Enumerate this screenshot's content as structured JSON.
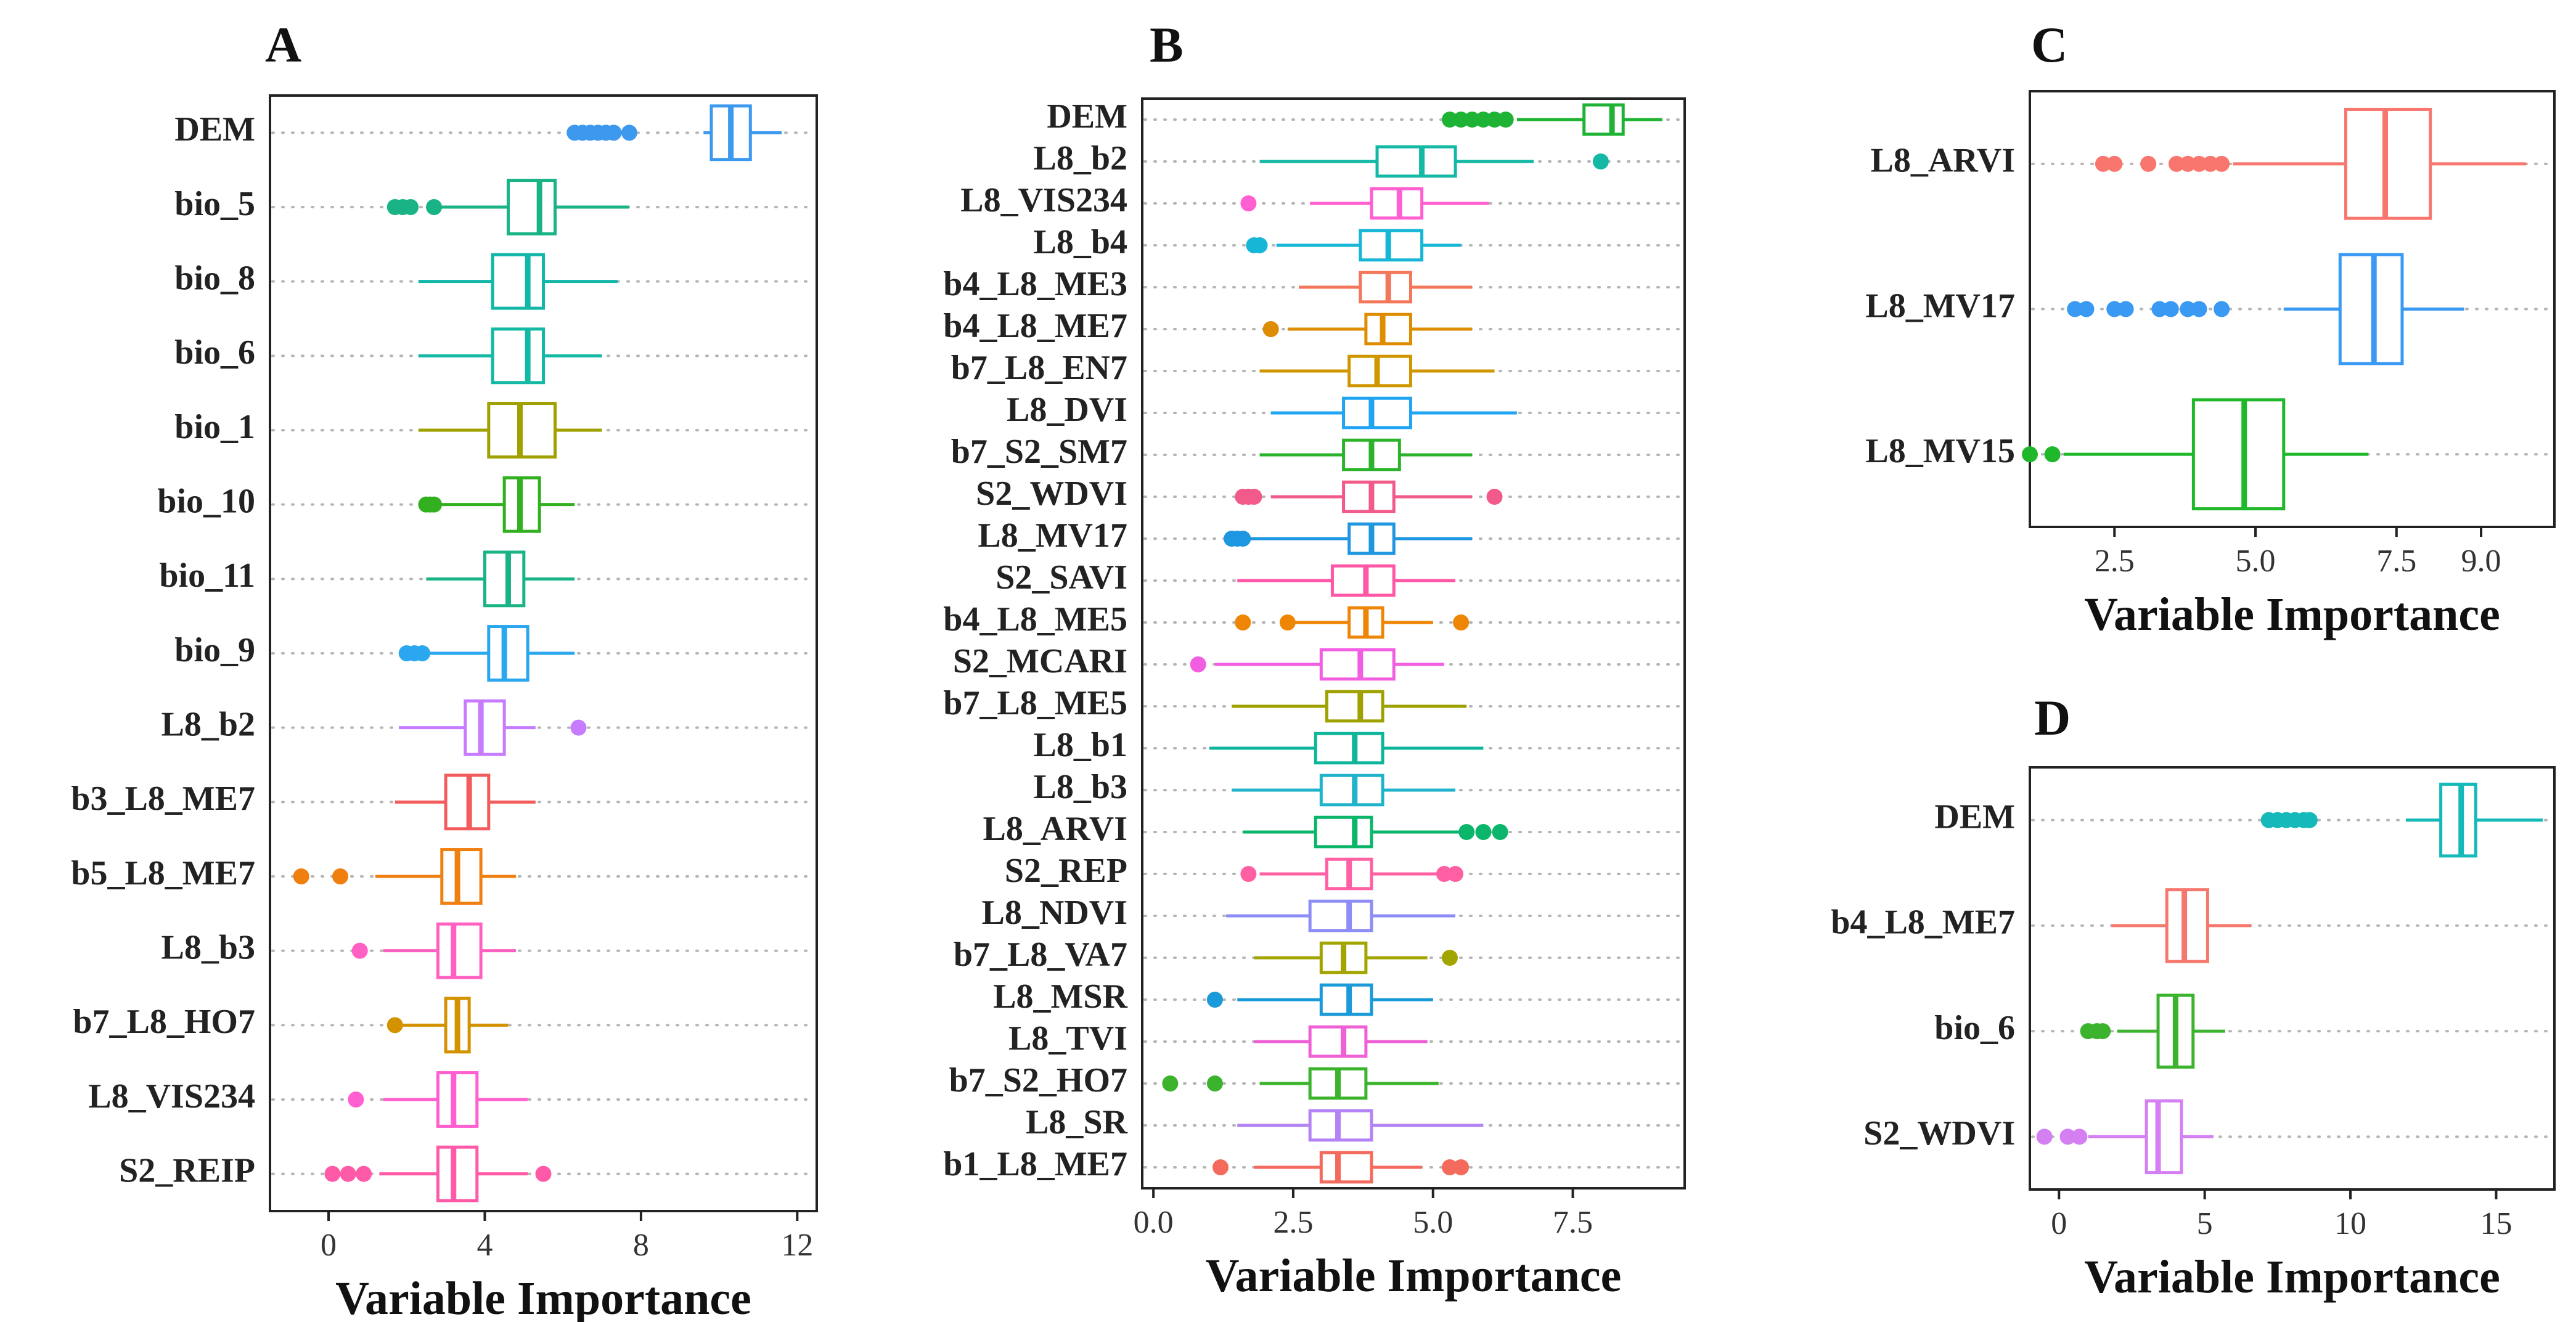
{
  "chart_data": [
    {
      "panel": "A",
      "type": "boxplot",
      "orientation": "horizontal",
      "xlabel": "Variable Importance",
      "xlim": [
        -1.5,
        12.5
      ],
      "xticks": [
        0,
        4,
        8,
        12
      ],
      "tick_labels": [
        "0",
        "4",
        "8",
        "12"
      ],
      "series": [
        {
          "name": "DEM",
          "color": "#3d99ee",
          "min": 9.6,
          "q1": 9.8,
          "median": 10.3,
          "q3": 10.8,
          "max": 11.6,
          "outliers": [
            6.3,
            6.5,
            6.7,
            6.9,
            7.1,
            7.3,
            7.7
          ]
        },
        {
          "name": "bio_5",
          "color": "#19b386",
          "min": 2.9,
          "q1": 4.6,
          "median": 5.4,
          "q3": 5.8,
          "max": 7.7,
          "outliers": [
            1.7,
            1.9,
            2.1,
            2.7
          ]
        },
        {
          "name": "bio_8",
          "color": "#12b7a8",
          "min": 2.3,
          "q1": 4.2,
          "median": 5.1,
          "q3": 5.5,
          "max": 7.4,
          "outliers": []
        },
        {
          "name": "bio_6",
          "color": "#13b9a4",
          "min": 2.3,
          "q1": 4.2,
          "median": 5.1,
          "q3": 5.5,
          "max": 7.0,
          "outliers": []
        },
        {
          "name": "bio_1",
          "color": "#a0a000",
          "min": 2.3,
          "q1": 4.1,
          "median": 4.9,
          "q3": 5.8,
          "max": 7.0,
          "outliers": []
        },
        {
          "name": "bio_10",
          "color": "#32b020",
          "min": 2.9,
          "q1": 4.5,
          "median": 4.9,
          "q3": 5.4,
          "max": 6.3,
          "outliers": [
            2.5,
            2.6,
            2.7
          ]
        },
        {
          "name": "bio_11",
          "color": "#19b386",
          "min": 2.5,
          "q1": 4.0,
          "median": 4.6,
          "q3": 5.0,
          "max": 6.3,
          "outliers": []
        },
        {
          "name": "bio_9",
          "color": "#2aa7ee",
          "min": 2.5,
          "q1": 4.1,
          "median": 4.5,
          "q3": 5.1,
          "max": 6.3,
          "outliers": [
            2.0,
            2.2,
            2.4
          ]
        },
        {
          "name": "L8_b2",
          "color": "#c77cff",
          "min": 1.8,
          "q1": 3.5,
          "median": 3.9,
          "q3": 4.5,
          "max": 5.3,
          "outliers": [
            6.4
          ]
        },
        {
          "name": "b3_L8_ME7",
          "color": "#f25c5c",
          "min": 1.7,
          "q1": 3.0,
          "median": 3.6,
          "q3": 4.1,
          "max": 5.3,
          "outliers": []
        },
        {
          "name": "b5_L8_ME7",
          "color": "#ef7f0f",
          "min": 1.2,
          "q1": 2.9,
          "median": 3.3,
          "q3": 3.9,
          "max": 4.8,
          "outliers": [
            -0.7,
            0.3
          ]
        },
        {
          "name": "L8_b3",
          "color": "#ff61c3",
          "min": 1.4,
          "q1": 2.8,
          "median": 3.2,
          "q3": 3.9,
          "max": 4.8,
          "outliers": [
            0.8
          ]
        },
        {
          "name": "b7_L8_HO7",
          "color": "#d39200",
          "min": 1.8,
          "q1": 3.0,
          "median": 3.3,
          "q3": 3.6,
          "max": 4.6,
          "outliers": [
            1.7
          ]
        },
        {
          "name": "L8_VIS234",
          "color": "#ff5fd0",
          "min": 1.4,
          "q1": 2.8,
          "median": 3.2,
          "q3": 3.8,
          "max": 5.1,
          "outliers": [
            0.7
          ]
        },
        {
          "name": "S2_REIP",
          "color": "#ff5aa7",
          "min": 1.3,
          "q1": 2.8,
          "median": 3.2,
          "q3": 3.8,
          "max": 5.1,
          "outliers": [
            0.1,
            0.5,
            0.9,
            5.5
          ]
        }
      ]
    },
    {
      "panel": "B",
      "type": "boxplot",
      "orientation": "horizontal",
      "xlabel": "Variable Importance",
      "xlim": [
        -0.2,
        9.5
      ],
      "xticks": [
        0,
        2.5,
        5,
        7.5
      ],
      "tick_labels": [
        "0.0",
        "2.5",
        "5.0",
        "7.5"
      ],
      "series": [
        {
          "name": "DEM",
          "color": "#1fb335",
          "min": 6.5,
          "q1": 7.7,
          "median": 8.2,
          "q3": 8.4,
          "max": 9.1,
          "outliers": [
            5.3,
            5.5,
            5.7,
            5.9,
            6.1,
            6.3
          ]
        },
        {
          "name": "L8_b2",
          "color": "#13b9a4",
          "min": 1.9,
          "q1": 4.0,
          "median": 4.8,
          "q3": 5.4,
          "max": 6.8,
          "outliers": [
            8.0
          ]
        },
        {
          "name": "L8_VIS234",
          "color": "#ff5fd0",
          "min": 2.8,
          "q1": 3.9,
          "median": 4.4,
          "q3": 4.8,
          "max": 6.0,
          "outliers": [
            1.7
          ]
        },
        {
          "name": "L8_b4",
          "color": "#16b6d6",
          "min": 2.2,
          "q1": 3.7,
          "median": 4.2,
          "q3": 4.8,
          "max": 5.5,
          "outliers": [
            1.8,
            1.9
          ]
        },
        {
          "name": "b4_L8_ME3",
          "color": "#f2775b",
          "min": 2.6,
          "q1": 3.7,
          "median": 4.2,
          "q3": 4.6,
          "max": 5.7,
          "outliers": []
        },
        {
          "name": "b4_L8_ME7",
          "color": "#de8c00",
          "min": 2.4,
          "q1": 3.8,
          "median": 4.1,
          "q3": 4.6,
          "max": 5.7,
          "outliers": [
            2.1
          ]
        },
        {
          "name": "b7_L8_EN7",
          "color": "#cf9600",
          "min": 1.9,
          "q1": 3.5,
          "median": 4.0,
          "q3": 4.6,
          "max": 6.1,
          "outliers": []
        },
        {
          "name": "L8_DVI",
          "color": "#21a4f3",
          "min": 2.1,
          "q1": 3.4,
          "median": 3.9,
          "q3": 4.6,
          "max": 6.5,
          "outliers": []
        },
        {
          "name": "b7_S2_SM7",
          "color": "#2bb32b",
          "min": 1.9,
          "q1": 3.4,
          "median": 3.9,
          "q3": 4.4,
          "max": 5.7,
          "outliers": []
        },
        {
          "name": "S2_WDVI",
          "color": "#f15a89",
          "min": 2.1,
          "q1": 3.4,
          "median": 3.9,
          "q3": 4.3,
          "max": 5.7,
          "outliers": [
            1.6,
            1.7,
            1.8,
            6.1
          ]
        },
        {
          "name": "L8_MV17",
          "color": "#1f96e0",
          "min": 1.7,
          "q1": 3.5,
          "median": 3.9,
          "q3": 4.3,
          "max": 5.7,
          "outliers": [
            1.4,
            1.5,
            1.6
          ]
        },
        {
          "name": "S2_SAVI",
          "color": "#ff56a6",
          "min": 1.5,
          "q1": 3.2,
          "median": 3.8,
          "q3": 4.3,
          "max": 5.4,
          "outliers": []
        },
        {
          "name": "b4_L8_ME5",
          "color": "#ef8505",
          "min": 2.5,
          "q1": 3.5,
          "median": 3.8,
          "q3": 4.1,
          "max": 5.0,
          "outliers": [
            1.6,
            2.4,
            5.5
          ]
        },
        {
          "name": "S2_MCARI",
          "color": "#f25ee2",
          "min": 1.1,
          "q1": 3.0,
          "median": 3.7,
          "q3": 4.3,
          "max": 5.2,
          "outliers": [
            0.8
          ]
        },
        {
          "name": "b7_L8_ME5",
          "color": "#9ea100",
          "min": 1.4,
          "q1": 3.1,
          "median": 3.7,
          "q3": 4.1,
          "max": 5.6,
          "outliers": []
        },
        {
          "name": "L8_b1",
          "color": "#0fb59a",
          "min": 1.0,
          "q1": 2.9,
          "median": 3.6,
          "q3": 4.1,
          "max": 5.9,
          "outliers": []
        },
        {
          "name": "L8_b3",
          "color": "#1fb3cc",
          "min": 1.4,
          "q1": 3.0,
          "median": 3.6,
          "q3": 4.1,
          "max": 5.4,
          "outliers": []
        },
        {
          "name": "L8_ARVI",
          "color": "#0bb66b",
          "min": 1.6,
          "q1": 2.9,
          "median": 3.6,
          "q3": 3.9,
          "max": 5.6,
          "outliers": [
            5.6,
            5.9,
            6.2
          ]
        },
        {
          "name": "S2_REP",
          "color": "#ff5fa3",
          "min": 1.9,
          "q1": 3.1,
          "median": 3.5,
          "q3": 3.9,
          "max": 5.2,
          "outliers": [
            1.7,
            5.2,
            5.4
          ]
        },
        {
          "name": "L8_NDVI",
          "color": "#8e8cf7",
          "min": 1.3,
          "q1": 2.8,
          "median": 3.5,
          "q3": 3.9,
          "max": 5.4,
          "outliers": []
        },
        {
          "name": "b7_L8_VA7",
          "color": "#a2a400",
          "min": 1.8,
          "q1": 3.0,
          "median": 3.4,
          "q3": 3.8,
          "max": 4.9,
          "outliers": [
            5.3
          ]
        },
        {
          "name": "L8_MSR",
          "color": "#1a9ad9",
          "min": 1.5,
          "q1": 3.0,
          "median": 3.5,
          "q3": 3.9,
          "max": 5.0,
          "outliers": [
            1.1
          ]
        },
        {
          "name": "L8_TVI",
          "color": "#ef60d6",
          "min": 1.8,
          "q1": 2.8,
          "median": 3.4,
          "q3": 3.8,
          "max": 4.9,
          "outliers": []
        },
        {
          "name": "b7_S2_HO7",
          "color": "#3bb32d",
          "min": 1.9,
          "q1": 2.8,
          "median": 3.3,
          "q3": 3.8,
          "max": 5.1,
          "outliers": [
            0.3,
            1.1
          ]
        },
        {
          "name": "L8_SR",
          "color": "#b383f5",
          "min": 1.5,
          "q1": 2.8,
          "median": 3.3,
          "q3": 3.9,
          "max": 5.9,
          "outliers": []
        },
        {
          "name": "b1_L8_ME7",
          "color": "#f46a5d",
          "min": 1.8,
          "q1": 3.0,
          "median": 3.3,
          "q3": 3.9,
          "max": 4.8,
          "outliers": [
            1.2,
            5.3,
            5.5
          ]
        }
      ]
    },
    {
      "panel": "C",
      "type": "boxplot",
      "orientation": "horizontal",
      "xlabel": "Variable Importance",
      "xlim": [
        1.0,
        10.3
      ],
      "xticks": [
        2.5,
        5,
        7.5,
        9
      ],
      "tick_labels": [
        "2.5",
        "5.0",
        "7.5",
        "9.0"
      ],
      "series": [
        {
          "name": "L8_ARVI",
          "color": "#f8766d",
          "min": 4.6,
          "q1": 6.6,
          "median": 7.3,
          "q3": 8.1,
          "max": 9.8,
          "outliers": [
            2.3,
            2.5,
            3.1,
            3.6,
            3.8,
            4.0,
            4.2,
            4.4
          ]
        },
        {
          "name": "L8_MV17",
          "color": "#3a99f3",
          "min": 5.5,
          "q1": 6.5,
          "median": 7.1,
          "q3": 7.6,
          "max": 8.7,
          "outliers": [
            1.8,
            2.0,
            2.5,
            2.7,
            3.3,
            3.5,
            3.8,
            4.0,
            4.4
          ]
        },
        {
          "name": "L8_MV15",
          "color": "#1fb82a",
          "min": 1.6,
          "q1": 3.9,
          "median": 4.8,
          "q3": 5.5,
          "max": 7.0,
          "outliers": [
            1.0,
            1.4
          ]
        }
      ]
    },
    {
      "panel": "D",
      "type": "boxplot",
      "orientation": "horizontal",
      "xlabel": "Variable Importance",
      "xlim": [
        -1.0,
        17.0
      ],
      "xticks": [
        0,
        5,
        10,
        15
      ],
      "tick_labels": [
        "0",
        "5",
        "10",
        "15"
      ],
      "series": [
        {
          "name": "DEM",
          "color": "#16b9b9",
          "min": 11.9,
          "q1": 13.1,
          "median": 13.8,
          "q3": 14.3,
          "max": 16.6,
          "outliers": [
            7.2,
            7.5,
            7.8,
            8.1,
            8.4,
            8.6
          ]
        },
        {
          "name": "b4_L8_ME7",
          "color": "#f4786e",
          "min": 1.8,
          "q1": 3.7,
          "median": 4.3,
          "q3": 5.1,
          "max": 6.6,
          "outliers": []
        },
        {
          "name": "bio_6",
          "color": "#3bb32d",
          "min": 2.0,
          "q1": 3.4,
          "median": 4.0,
          "q3": 4.6,
          "max": 5.7,
          "outliers": [
            1.0,
            1.3,
            1.5
          ]
        },
        {
          "name": "S2_WDVI",
          "color": "#d47ff2",
          "min": 1.0,
          "q1": 3.0,
          "median": 3.4,
          "q3": 4.2,
          "max": 5.3,
          "outliers": [
            -0.5,
            0.3,
            0.7
          ]
        }
      ]
    }
  ]
}
